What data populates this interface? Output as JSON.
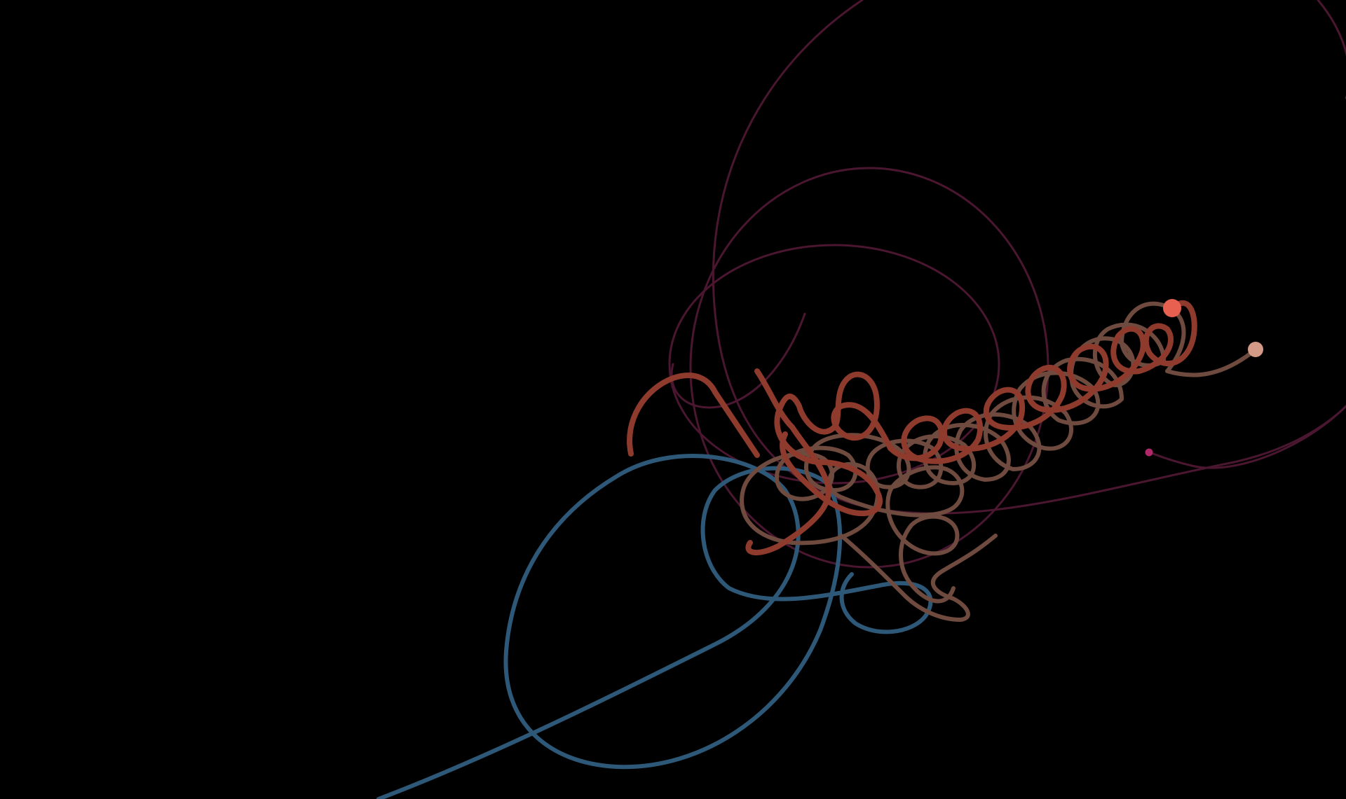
{
  "scene": {
    "background": "#000000",
    "bodies": [
      {
        "name": "coral-body",
        "color": "#e8604f"
      },
      {
        "name": "peach-body",
        "color": "#d49a88"
      },
      {
        "name": "magenta-body",
        "color": "#b0286a"
      }
    ],
    "trails": [
      {
        "name": "blue-trail",
        "color": "#2e5878"
      },
      {
        "name": "maroon-trail",
        "color": "#4a1630"
      },
      {
        "name": "red-brown-trail",
        "color": "#8e3a2c"
      },
      {
        "name": "tan-brown-trail",
        "color": "#6f4a3e"
      }
    ]
  }
}
